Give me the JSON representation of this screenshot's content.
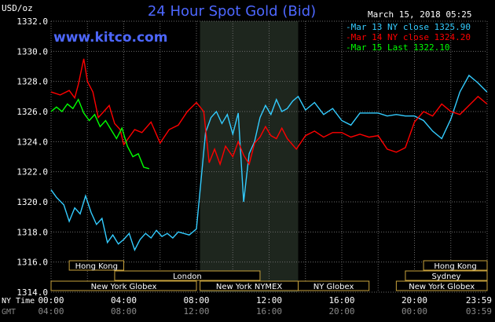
{
  "header": {
    "title": "24 Hour Spot Gold (Bid)",
    "datetime": "March 15, 2018 05:25",
    "y_unit": "USD/oz",
    "brand": "www.kitco.com"
  },
  "legend": [
    {
      "text": "Mar 13 NY close 1325.90",
      "color": "#33ccff"
    },
    {
      "text": "Mar 14 NY close 1324.20",
      "color": "#ff0000"
    },
    {
      "text": "Mar 15 Last 1322.10",
      "color": "#00ff00"
    }
  ],
  "axis": {
    "ny_label": "NY Time",
    "gmt_label": "GMT",
    "ny_ticks": [
      "00:00",
      "04:00",
      "08:00",
      "12:00",
      "16:00",
      "20:00",
      "23:59"
    ],
    "gmt_ticks": [
      "04:00",
      "08:00",
      "12:00",
      "16:00",
      "20:00",
      "00:00",
      "03:59"
    ]
  },
  "sessions": [
    {
      "name": "Hong Kong",
      "row": 0,
      "start": 1.0,
      "end": 4.0
    },
    {
      "name": "Hong Kong",
      "row": 0,
      "start": 20.5,
      "end": 24.0
    },
    {
      "name": "London",
      "row": 1,
      "start": 3.5,
      "end": 11.5
    },
    {
      "name": "Sydney",
      "row": 1,
      "start": 19.5,
      "end": 24.0
    },
    {
      "name": "New York Globex",
      "row": 2,
      "start": 0.0,
      "end": 8.0
    },
    {
      "name": "New York NYMEX",
      "row": 2,
      "start": 8.2,
      "end": 13.6
    },
    {
      "name": "NY Globex",
      "row": 2,
      "start": 13.6,
      "end": 17.5
    },
    {
      "name": "New York Globex",
      "row": 2,
      "start": 19.0,
      "end": 24.0
    }
  ],
  "chart_data": {
    "type": "line",
    "title": "24 Hour Spot Gold (Bid)",
    "ylabel": "USD/oz",
    "ylim": [
      1314.0,
      1332.0
    ],
    "yticks": [
      "1314.0",
      "1316.0",
      "1318.0",
      "1320.0",
      "1322.0",
      "1324.0",
      "1326.0",
      "1328.0",
      "1330.0",
      "1332.0"
    ],
    "xlim": [
      0,
      24
    ],
    "grid": true,
    "highlight_range": [
      8.2,
      13.6
    ],
    "series": [
      {
        "name": "Mar 13 NY close 1325.90",
        "color": "#33ccff",
        "x": [
          0,
          0.3,
          0.7,
          1.0,
          1.3,
          1.6,
          1.9,
          2.2,
          2.5,
          2.8,
          3.1,
          3.4,
          3.7,
          4.0,
          4.3,
          4.6,
          4.9,
          5.2,
          5.5,
          5.8,
          6.1,
          6.4,
          6.7,
          7.0,
          7.3,
          7.6,
          8.0,
          8.3,
          8.5,
          8.8,
          9.1,
          9.4,
          9.7,
          10.0,
          10.3,
          10.6,
          10.9,
          11.2,
          11.5,
          11.8,
          12.1,
          12.4,
          12.7,
          13.0,
          13.3,
          13.6,
          14.0,
          14.5,
          15.0,
          15.5,
          16.0,
          16.5,
          17.0,
          17.5,
          18.0,
          18.5,
          19.0,
          19.5,
          20.0,
          20.5,
          21.0,
          21.5,
          22.0,
          22.5,
          23.0,
          23.5,
          23.99
        ],
        "y": [
          1320.8,
          1320.3,
          1319.8,
          1318.7,
          1319.6,
          1319.2,
          1320.4,
          1319.3,
          1318.5,
          1318.9,
          1317.3,
          1317.8,
          1317.2,
          1317.5,
          1317.9,
          1316.8,
          1317.5,
          1317.9,
          1317.6,
          1318.1,
          1317.7,
          1317.9,
          1317.6,
          1318.0,
          1317.9,
          1317.8,
          1318.2,
          1322.0,
          1324.6,
          1325.6,
          1326.0,
          1325.2,
          1325.8,
          1324.5,
          1325.9,
          1320.0,
          1323.2,
          1324.0,
          1325.6,
          1326.4,
          1325.8,
          1326.8,
          1326.0,
          1326.2,
          1326.7,
          1327.0,
          1326.1,
          1326.6,
          1325.8,
          1326.2,
          1325.4,
          1325.1,
          1325.9,
          1325.9,
          1325.9,
          1325.7,
          1325.8,
          1325.7,
          1325.7,
          1325.4,
          1324.7,
          1324.2,
          1325.5,
          1327.3,
          1328.4,
          1327.9,
          1327.3
        ]
      },
      {
        "name": "Mar 14 NY close 1324.20",
        "color": "#ff0000",
        "x": [
          0,
          0.5,
          1.0,
          1.3,
          1.5,
          1.8,
          2.0,
          2.3,
          2.6,
          2.9,
          3.2,
          3.5,
          3.8,
          4.0,
          4.3,
          4.6,
          5.0,
          5.5,
          6.0,
          6.5,
          7.0,
          7.5,
          8.0,
          8.4,
          8.7,
          9.0,
          9.3,
          9.6,
          10.0,
          10.3,
          10.6,
          10.9,
          11.2,
          11.5,
          11.8,
          12.1,
          12.4,
          12.7,
          13.0,
          13.5,
          14.0,
          14.5,
          15.0,
          15.5,
          16.0,
          16.5,
          17.0,
          17.5,
          18.0,
          18.5,
          19.0,
          19.5,
          20.0,
          20.5,
          21.0,
          21.5,
          22.0,
          22.5,
          23.0,
          23.5,
          23.99
        ],
        "y": [
          1327.3,
          1327.1,
          1327.4,
          1326.9,
          1327.8,
          1329.5,
          1328.0,
          1327.3,
          1325.6,
          1326.0,
          1326.4,
          1325.2,
          1324.8,
          1323.8,
          1324.3,
          1324.8,
          1324.6,
          1325.3,
          1323.9,
          1324.8,
          1325.1,
          1326.0,
          1326.6,
          1326.0,
          1322.6,
          1323.5,
          1322.5,
          1323.7,
          1323.0,
          1324.0,
          1323.1,
          1322.5,
          1323.9,
          1324.3,
          1325.0,
          1324.4,
          1324.2,
          1324.9,
          1324.2,
          1323.5,
          1324.4,
          1324.7,
          1324.3,
          1324.6,
          1324.6,
          1324.3,
          1324.5,
          1324.3,
          1324.4,
          1323.5,
          1323.3,
          1323.6,
          1325.3,
          1326.0,
          1325.7,
          1326.5,
          1326.0,
          1325.8,
          1326.4,
          1327.0,
          1326.5
        ]
      },
      {
        "name": "Mar 15 Last 1322.10",
        "color": "#00ff00",
        "x": [
          0,
          0.3,
          0.6,
          0.9,
          1.2,
          1.5,
          1.8,
          2.1,
          2.4,
          2.7,
          3.0,
          3.3,
          3.6,
          3.9,
          4.2,
          4.5,
          4.8,
          5.1,
          5.4
        ],
        "y": [
          1326.0,
          1326.3,
          1326.0,
          1326.5,
          1326.2,
          1326.8,
          1325.9,
          1325.4,
          1325.8,
          1325.0,
          1325.4,
          1324.8,
          1324.2,
          1324.9,
          1323.7,
          1323.0,
          1323.2,
          1322.3,
          1322.2
        ]
      }
    ]
  }
}
